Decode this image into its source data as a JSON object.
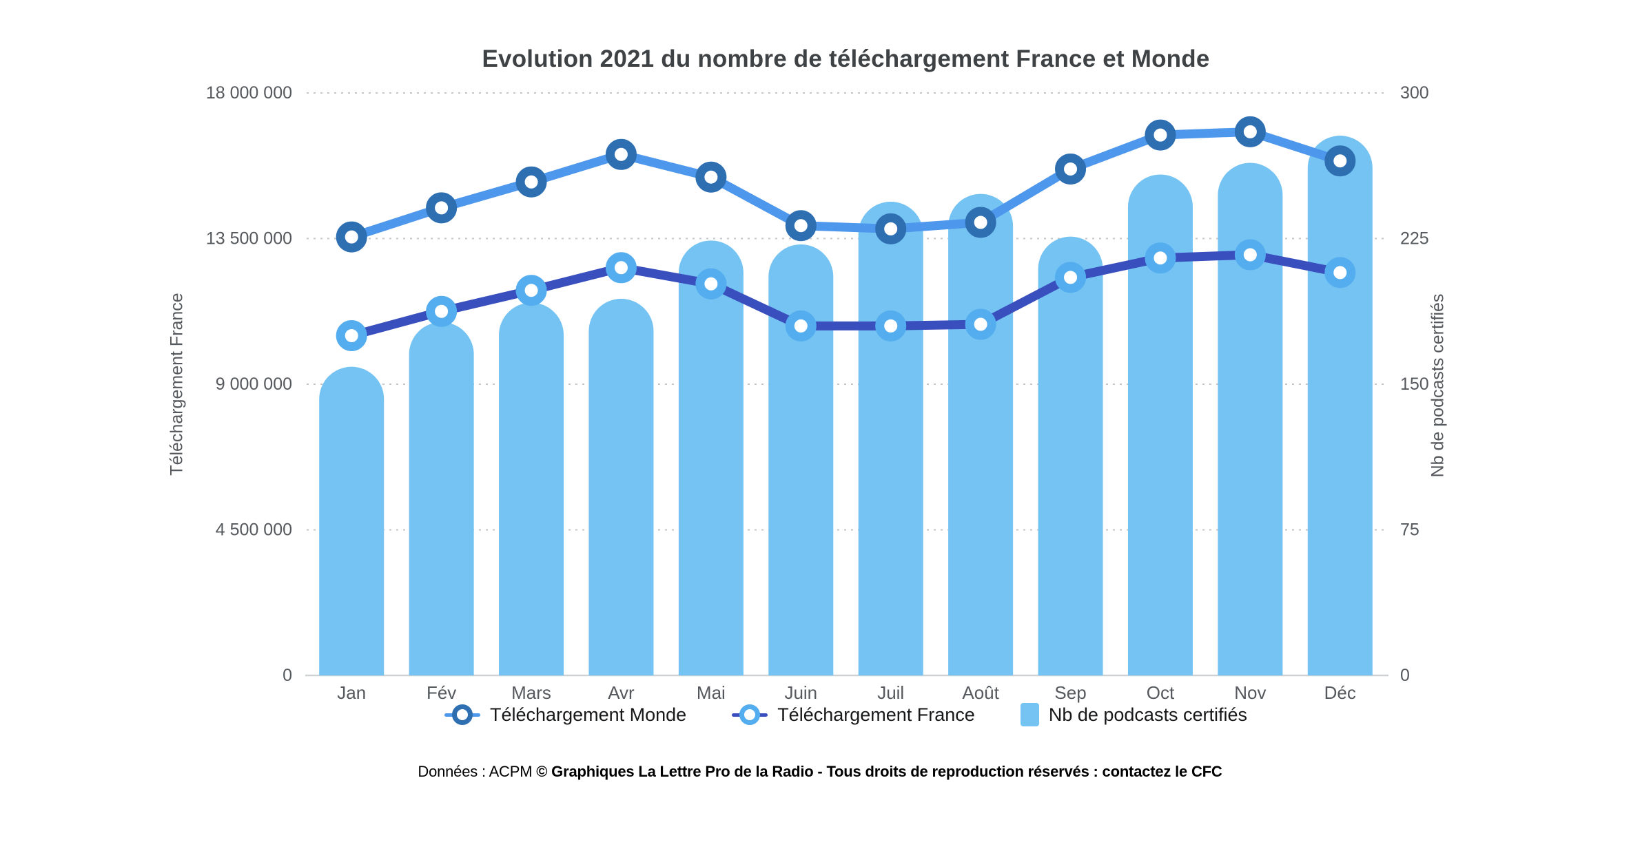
{
  "title": "Evolution 2021 du nombre de téléchargement France et Monde",
  "y_left_axis": {
    "title": "Téléchargement France",
    "ticks": [
      "18 000 000",
      "13 500 000",
      "9 000 000",
      "4 500 000",
      "0"
    ]
  },
  "y_right_axis": {
    "title": "Nb de podcasts certifiés",
    "ticks": [
      "300",
      "225",
      "150",
      "75",
      "0"
    ]
  },
  "legend": {
    "items": [
      {
        "label": "Téléchargement Monde",
        "icon": "line-ring-marker-icon",
        "type": "line",
        "line_color": "#4D97ED",
        "marker_color": "#2E6FB2"
      },
      {
        "label": "Téléchargement France",
        "icon": "line-ring-marker-icon",
        "type": "line",
        "line_color": "#3A4FBE",
        "marker_color": "#54ADEE"
      },
      {
        "label": "Nb de podcasts certifiés",
        "icon": "bar-swatch-icon",
        "type": "bar",
        "swatch_color": "#74C3F3"
      }
    ]
  },
  "footer": {
    "prefix": "Données : ACPM ",
    "bold": "© Graphiques La Lettre Pro de la Radio - Tous droits de reproduction réservés : contactez le CFC"
  },
  "colors": {
    "bar_fill": "#74C3F3",
    "monde_line": "#4D97ED",
    "monde_marker_ring": "#2E6FB2",
    "france_line": "#3A4FBE",
    "france_marker_ring": "#54ADEE",
    "gridline": "#c3c5c7",
    "axis_line": "#cfd2d4",
    "tick_text": "#55585c",
    "month_text": "#55585c"
  },
  "chart_data": {
    "type": "combo",
    "categories": [
      "Jan",
      "Fév",
      "Mars",
      "Avr",
      "Mai",
      "Juin",
      "Juil",
      "Août",
      "Sep",
      "Oct",
      "Nov",
      "Déc"
    ],
    "series": [
      {
        "name": "Téléchargement Monde",
        "type": "line",
        "axis": "left",
        "values": [
          13550000,
          14450000,
          15250000,
          16100000,
          15400000,
          13900000,
          13800000,
          14000000,
          15650000,
          16700000,
          16800000,
          15900000
        ]
      },
      {
        "name": "Téléchargement France",
        "type": "line",
        "axis": "left",
        "values": [
          10500000,
          11250000,
          11900000,
          12600000,
          12100000,
          10800000,
          10800000,
          10850000,
          12300000,
          12900000,
          13000000,
          12450000
        ]
      },
      {
        "name": "Nb de podcasts certifiés",
        "type": "bar",
        "axis": "right",
        "values": [
          159,
          182,
          192,
          194,
          224,
          222,
          244,
          248,
          226,
          258,
          264,
          278
        ]
      }
    ],
    "left_axis_range": [
      0,
      18000000
    ],
    "right_axis_range": [
      0,
      300
    ],
    "grid": "dashed-horizontal",
    "legend_position": "bottom"
  }
}
